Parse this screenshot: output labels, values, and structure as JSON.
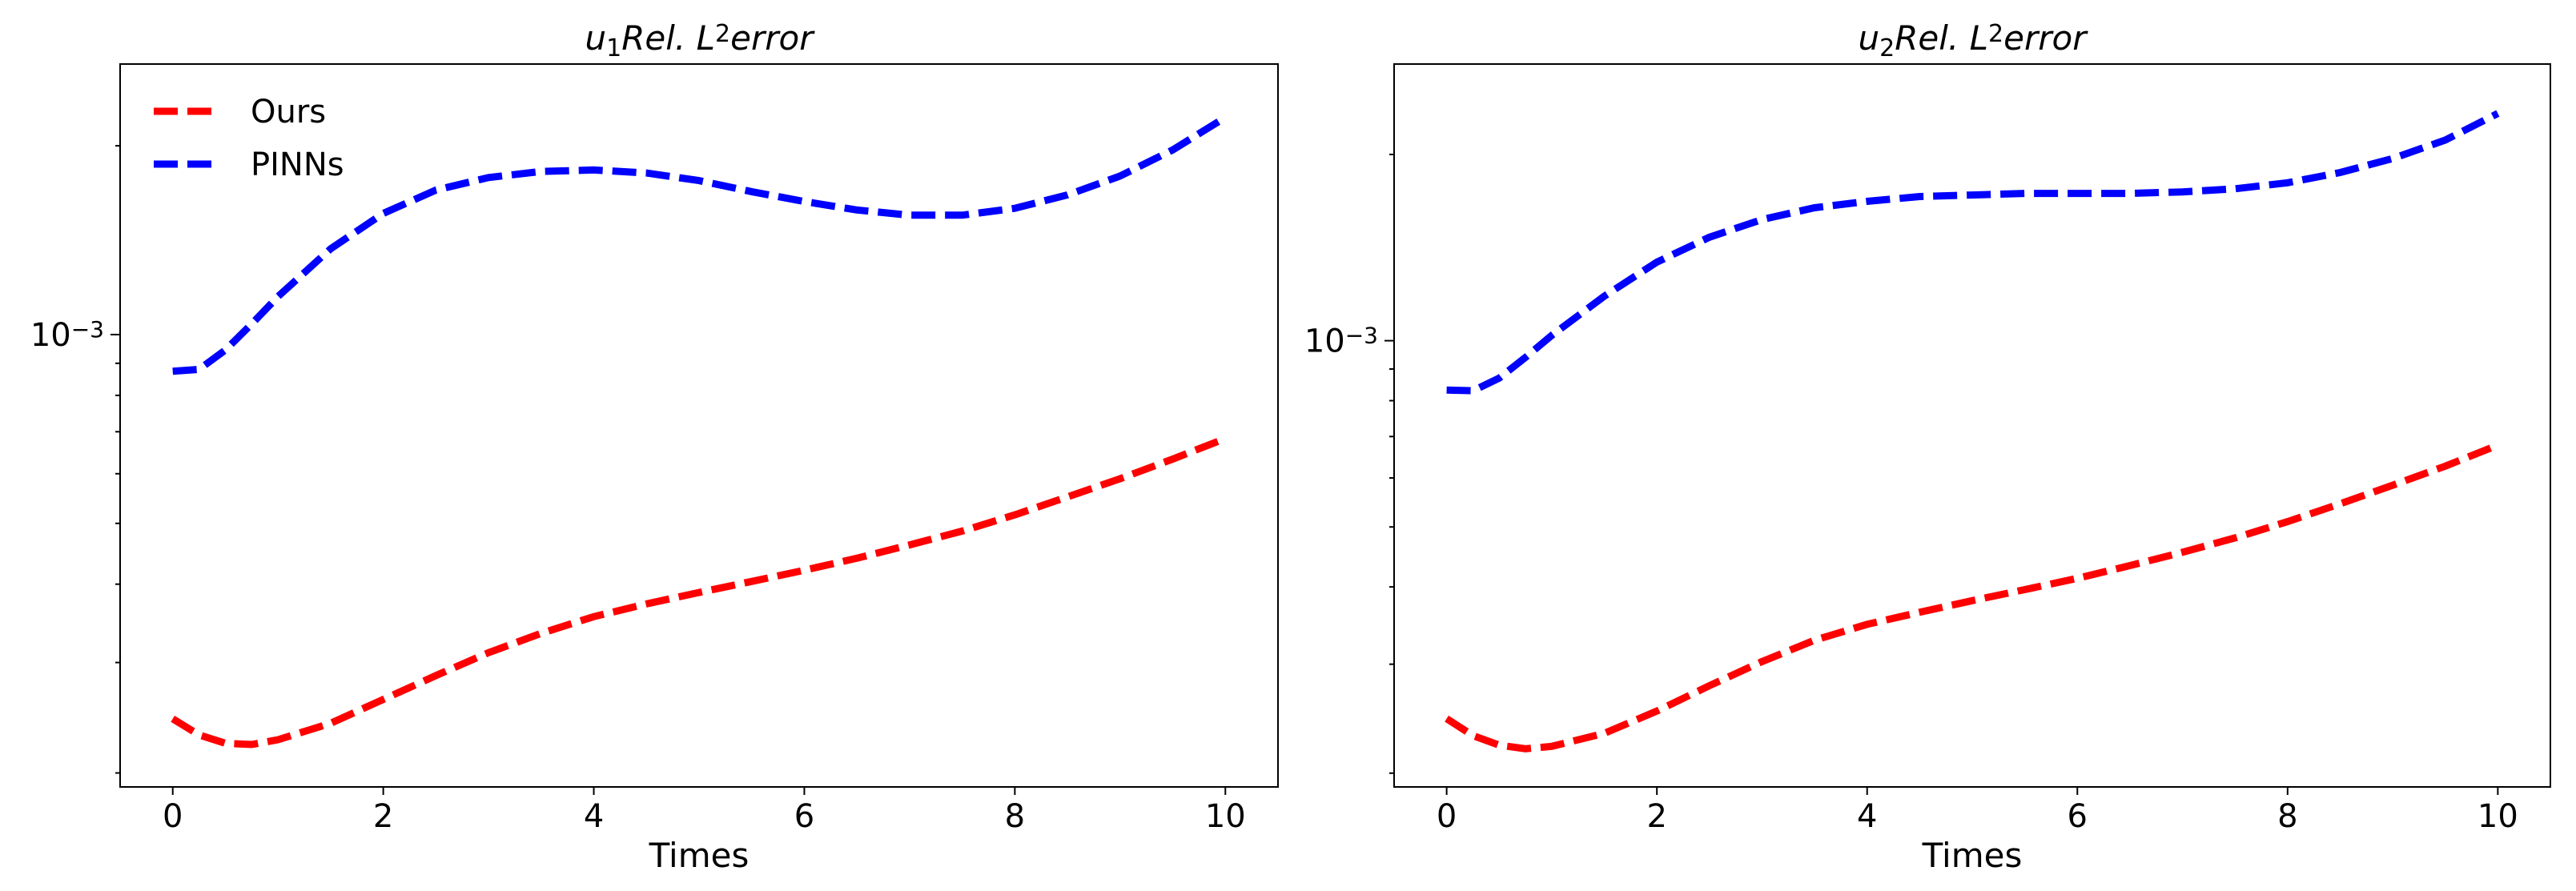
{
  "chart_data": [
    {
      "type": "line",
      "title": "u1Rel.L2error",
      "title_parts": {
        "base": "u",
        "sub": "1",
        "mid": "Rel. L",
        "sup": "2",
        "tail": "error"
      },
      "xlabel": "Times",
      "ylabel": "",
      "xlim": [
        -0.5,
        10.5
      ],
      "ylim": [
        0.00019,
        0.0027
      ],
      "yscale": "log",
      "x_ticks": [
        0,
        2,
        4,
        6,
        8,
        10
      ],
      "y_major_ticks": [
        {
          "value": 0.001,
          "base": "10",
          "exp": "−3"
        }
      ],
      "y_minor_ticks": [
        0.0002,
        0.0003,
        0.0004,
        0.0005,
        0.0006,
        0.0007,
        0.0008,
        0.0009,
        0.002
      ],
      "grid": false,
      "legend": {
        "placement": "top-left",
        "entries": [
          "Ours",
          "PINNs"
        ]
      },
      "series": [
        {
          "name": "Ours",
          "color": "#ff0000",
          "x": [
            0,
            0.25,
            0.5,
            0.75,
            1,
            1.5,
            2,
            2.5,
            3,
            3.5,
            4,
            4.5,
            5,
            5.5,
            6,
            6.5,
            7,
            7.5,
            8,
            8.5,
            9,
            9.5,
            10
          ],
          "y": [
            0.000244,
            0.00023,
            0.000223,
            0.000222,
            0.000226,
            0.00024,
            0.000262,
            0.000286,
            0.000311,
            0.000334,
            0.000355,
            0.000372,
            0.000388,
            0.000404,
            0.000421,
            0.00044,
            0.000462,
            0.000486,
            0.000516,
            0.000551,
            0.000589,
            0.000633,
            0.000683
          ]
        },
        {
          "name": "PINNs",
          "color": "#0000ff",
          "x": [
            0,
            0.25,
            0.5,
            0.75,
            1,
            1.5,
            2,
            2.5,
            3,
            3.5,
            4,
            4.5,
            5,
            5.5,
            6,
            6.5,
            7,
            7.5,
            8,
            8.5,
            9,
            9.5,
            10
          ],
          "y": [
            0.000874,
            0.00088,
            0.000945,
            0.00104,
            0.00115,
            0.00137,
            0.00156,
            0.0017,
            0.00178,
            0.00182,
            0.00183,
            0.00181,
            0.00176,
            0.00169,
            0.00163,
            0.00158,
            0.00155,
            0.00155,
            0.00159,
            0.00167,
            0.00179,
            0.00197,
            0.00222
          ]
        }
      ]
    },
    {
      "type": "line",
      "title": "u2Rel.L2error",
      "title_parts": {
        "base": "u",
        "sub": "2",
        "mid": "Rel. L",
        "sup": "2",
        "tail": "error"
      },
      "xlabel": "Times",
      "ylabel": "",
      "xlim": [
        -0.5,
        10.5
      ],
      "ylim": [
        0.00019,
        0.0028
      ],
      "yscale": "log",
      "x_ticks": [
        0,
        2,
        4,
        6,
        8,
        10
      ],
      "y_major_ticks": [
        {
          "value": 0.001,
          "base": "10",
          "exp": "−3"
        }
      ],
      "y_minor_ticks": [
        0.0002,
        0.0003,
        0.0004,
        0.0005,
        0.0006,
        0.0007,
        0.0008,
        0.0009,
        0.002
      ],
      "grid": false,
      "legend": null,
      "series": [
        {
          "name": "Ours",
          "color": "#ff0000",
          "x": [
            0,
            0.25,
            0.5,
            0.75,
            1,
            1.5,
            2,
            2.5,
            3,
            3.5,
            4,
            4.5,
            5,
            5.5,
            6,
            6.5,
            7,
            7.5,
            8,
            8.5,
            9,
            9.5,
            10
          ],
          "y": [
            0.000245,
            0.00023,
            0.000222,
            0.000219,
            0.000221,
            0.000232,
            0.000252,
            0.000277,
            0.000303,
            0.000328,
            0.000348,
            0.000364,
            0.00038,
            0.000396,
            0.000413,
            0.000433,
            0.000455,
            0.00048,
            0.00051,
            0.000545,
            0.000584,
            0.000627,
            0.000678
          ]
        },
        {
          "name": "PINNs",
          "color": "#0000ff",
          "x": [
            0,
            0.25,
            0.5,
            0.75,
            1,
            1.5,
            2,
            2.5,
            3,
            3.5,
            4,
            4.5,
            5,
            5.5,
            6,
            6.5,
            7,
            7.5,
            8,
            8.5,
            9,
            9.5,
            10
          ],
          "y": [
            0.000832,
            0.00083,
            0.00087,
            0.00094,
            0.00102,
            0.00118,
            0.00134,
            0.00147,
            0.00157,
            0.00164,
            0.00168,
            0.00171,
            0.00172,
            0.00173,
            0.00173,
            0.00173,
            0.00174,
            0.00176,
            0.0018,
            0.00187,
            0.00197,
            0.00211,
            0.00233
          ]
        }
      ]
    }
  ]
}
